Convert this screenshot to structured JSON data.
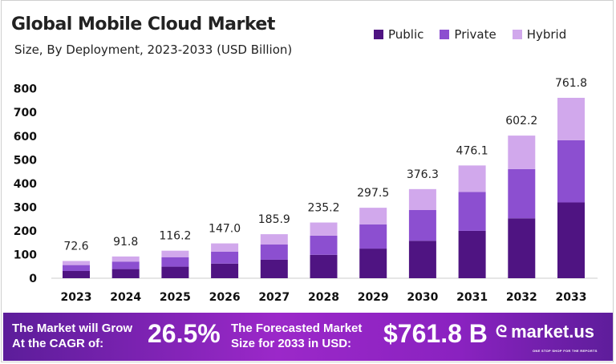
{
  "chart_data": {
    "type": "bar",
    "stacked": true,
    "title": "Global Mobile Cloud Market",
    "subtitle": "Size, By Deployment, 2023-2033 (USD Billion)",
    "xlabel": "",
    "ylabel": "",
    "ylim": [
      0,
      800
    ],
    "yticks": [
      "0",
      "100",
      "200",
      "300",
      "400",
      "500",
      "600",
      "700",
      "800"
    ],
    "grid": false,
    "legend_position": "top-right",
    "categories": [
      "2023",
      "2024",
      "2025",
      "2026",
      "2027",
      "2028",
      "2029",
      "2030",
      "2031",
      "2032",
      "2033"
    ],
    "totals": [
      "72.6",
      "91.8",
      "116.2",
      "147.0",
      "185.9",
      "235.2",
      "297.5",
      "376.3",
      "476.1",
      "602.2",
      "761.8"
    ],
    "series": [
      {
        "name": "Public",
        "color": "#4f1482",
        "values": [
          30.5,
          38.6,
          48.8,
          61.7,
          78.1,
          98.8,
          125.0,
          158.0,
          200.0,
          252.9,
          320.0
        ]
      },
      {
        "name": "Private",
        "color": "#8c4fd0",
        "values": [
          25.0,
          31.7,
          40.1,
          50.7,
          64.1,
          81.1,
          102.6,
          129.8,
          164.3,
          207.8,
          262.8
        ]
      },
      {
        "name": "Hybrid",
        "color": "#d1a8ec",
        "values": [
          17.1,
          21.5,
          27.3,
          34.6,
          43.7,
          55.3,
          69.9,
          88.5,
          111.8,
          141.5,
          179.0
        ]
      }
    ]
  },
  "banner": {
    "cagr_text_line1": "The Market will Grow",
    "cagr_text_line2": "At the CAGR of:",
    "cagr_value": "26.5%",
    "forecast_text_line1": "The Forecasted Market",
    "forecast_text_line2": "Size for 2033 in USD:",
    "forecast_value": "$761.8 B",
    "logo_text": "market.us",
    "logo_tagline": "ONE STOP SHOP FOR THE REPORTS"
  }
}
